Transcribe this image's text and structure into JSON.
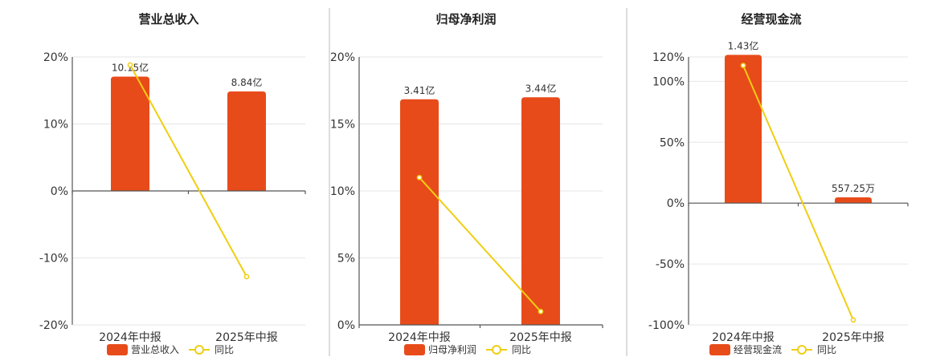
{
  "colors": {
    "bar": "#E84B1A",
    "line": "#F0CE12",
    "marker_fill": "#ffffff"
  },
  "chart_data": [
    {
      "type": "bar",
      "title": "营业总收入",
      "categories": [
        "2024年中报",
        "2025年中报"
      ],
      "series": [
        {
          "name": "营业总收入",
          "type": "bar",
          "values": [
            10.15,
            8.84
          ],
          "labels": [
            "10.15亿",
            "8.84亿"
          ]
        },
        {
          "name": "同比",
          "type": "line",
          "values": [
            18.8,
            -12.8
          ]
        }
      ],
      "y_ticks": [
        "20%",
        "10%",
        "0%",
        "-10%",
        "-20%"
      ],
      "ylim": [
        -20,
        20
      ],
      "bar_scale_max": 11.9,
      "grid": true,
      "legend": "bottom"
    },
    {
      "type": "bar",
      "title": "归母净利润",
      "categories": [
        "2024年中报",
        "2025年中报"
      ],
      "series": [
        {
          "name": "归母净利润",
          "type": "bar",
          "values": [
            3.41,
            3.44
          ],
          "labels": [
            "3.41亿",
            "3.44亿"
          ]
        },
        {
          "name": "同比",
          "type": "line",
          "values": [
            11,
            1
          ]
        }
      ],
      "y_ticks": [
        "20%",
        "15%",
        "10%",
        "5%",
        "0%"
      ],
      "ylim": [
        0,
        20
      ],
      "bar_scale_max": 4.05,
      "grid": true,
      "legend": "bottom"
    },
    {
      "type": "bar",
      "title": "经营现金流",
      "categories": [
        "2024年中报",
        "2025年中报"
      ],
      "series": [
        {
          "name": "经营现金流",
          "type": "bar",
          "values": [
            1.43,
            0.0557
          ],
          "labels": [
            "1.43亿",
            "557.25万"
          ]
        },
        {
          "name": "同比",
          "type": "line",
          "values": [
            113,
            -96
          ]
        }
      ],
      "y_ticks": [
        "120%",
        "100%",
        "50%",
        "0%",
        "-50%",
        "-100%"
      ],
      "ylim": [
        -100,
        120
      ],
      "bar_scale_max": 1.41,
      "grid": true,
      "legend": "bottom"
    }
  ]
}
